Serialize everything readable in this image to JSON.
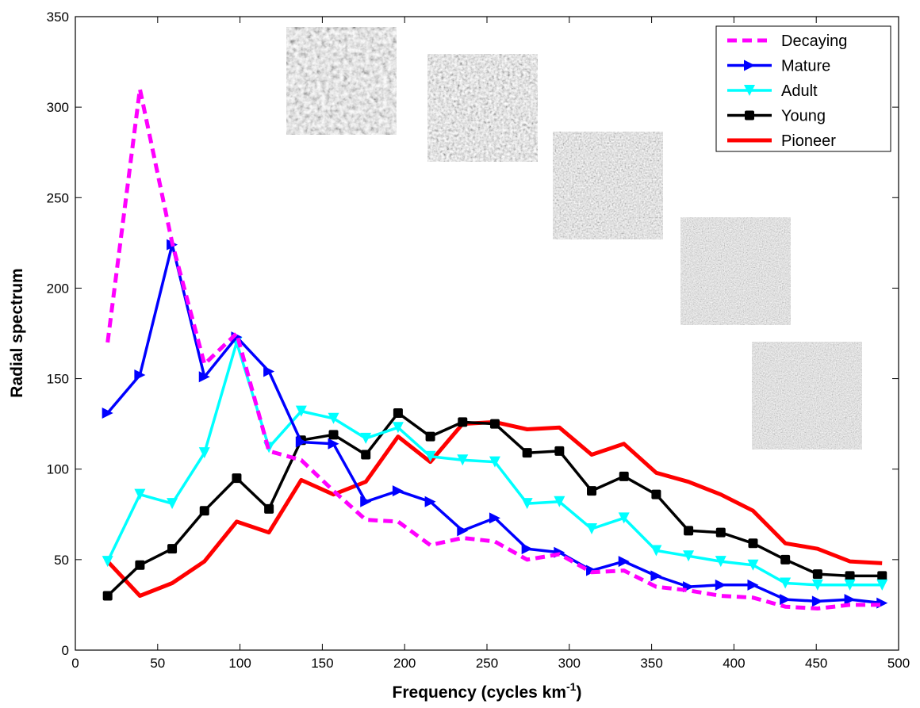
{
  "chart_data": {
    "type": "line",
    "xlabel": "Frequency (cycles km",
    "xlabel_superscript": "-1",
    "xlabel_close": ")",
    "ylabel": "Radial spectrum",
    "xlim": [
      0,
      500
    ],
    "ylim": [
      0,
      350
    ],
    "x_ticks": [
      0,
      50,
      100,
      150,
      200,
      250,
      300,
      350,
      400,
      450,
      500
    ],
    "y_ticks": [
      0,
      50,
      100,
      150,
      200,
      250,
      300,
      350
    ],
    "x_tick_labels": [
      "0",
      "50",
      "100",
      "150",
      "200",
      "250",
      "300",
      "350",
      "400",
      "450",
      "500"
    ],
    "y_tick_labels": [
      "0",
      "50",
      "100",
      "150",
      "200",
      "250",
      "300",
      "350"
    ],
    "grid": false,
    "legend_position": "top-right",
    "x": [
      19.6,
      39.2,
      58.8,
      78.4,
      98.0,
      117.6,
      137.2,
      156.8,
      176.4,
      196.0,
      215.6,
      235.2,
      254.8,
      274.4,
      294.0,
      313.6,
      333.2,
      352.8,
      372.4,
      392.0,
      411.6,
      431.2,
      450.8,
      470.4,
      490.0
    ],
    "series": [
      {
        "name": "Decaying",
        "color": "#ff00ff",
        "dash": true,
        "marker": "none",
        "values": [
          170,
          310,
          225,
          158,
          175,
          110,
          105,
          88,
          72,
          71,
          58,
          62,
          60,
          50,
          53,
          43,
          44,
          35,
          33,
          30,
          29,
          24,
          23,
          25,
          25
        ]
      },
      {
        "name": "Mature",
        "color": "#0000ff",
        "dash": false,
        "marker": "triangle-right",
        "values": [
          131,
          152,
          224,
          151,
          173,
          154,
          115,
          114,
          82,
          88,
          82,
          66,
          73,
          56,
          54,
          44,
          49,
          41,
          35,
          36,
          36,
          28,
          27,
          28,
          26
        ]
      },
      {
        "name": "Adult",
        "color": "#00ffff",
        "dash": false,
        "marker": "triangle-down",
        "values": [
          49,
          86,
          81,
          109,
          170,
          112,
          132,
          128,
          117,
          123,
          107,
          105,
          104,
          81,
          82,
          67,
          73,
          55,
          52,
          49,
          47,
          37,
          36,
          36,
          36
        ]
      },
      {
        "name": "Young",
        "color": "#000000",
        "dash": false,
        "marker": "square",
        "values": [
          30,
          47,
          56,
          77,
          95,
          78,
          116,
          119,
          108,
          131,
          118,
          126,
          125,
          109,
          110,
          88,
          96,
          86,
          66,
          65,
          59,
          50,
          42,
          41,
          41
        ]
      },
      {
        "name": "Pioneer",
        "color": "#ff0000",
        "dash": false,
        "marker": "none",
        "values": [
          49,
          30,
          37,
          49,
          71,
          65,
          94,
          86,
          93,
          118,
          104,
          125,
          126,
          122,
          123,
          108,
          114,
          98,
          93,
          86,
          77,
          59,
          56,
          49,
          48
        ]
      }
    ]
  }
}
